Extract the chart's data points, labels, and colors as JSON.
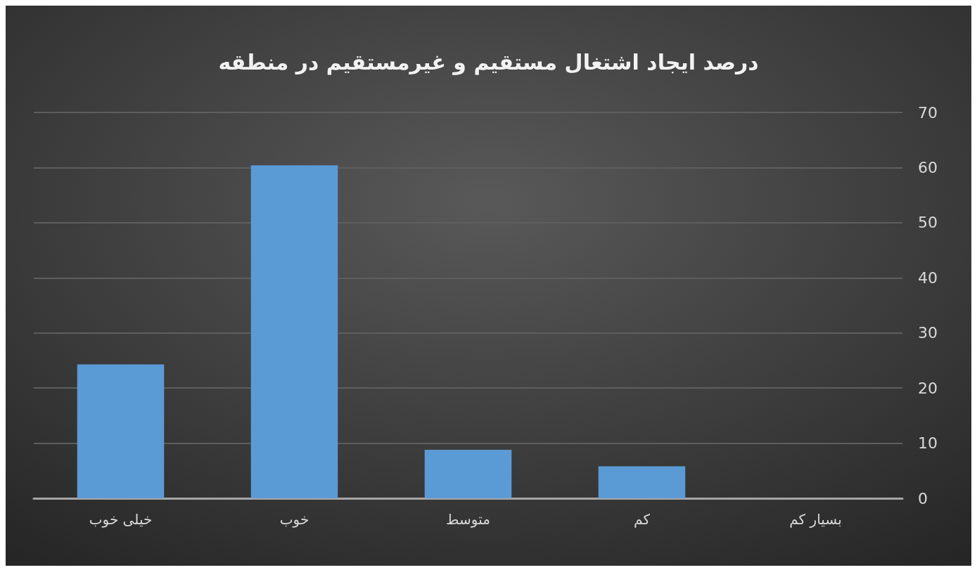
{
  "chart_data": {
    "type": "bar",
    "title": "درصد ایجاد اشتغال مستقیم و غیرمستقیم در منطقه",
    "categories": [
      "خیلی خوب",
      "خوب",
      "متوسط",
      "کم",
      "بسیار کم"
    ],
    "values": [
      24.3,
      60.4,
      8.8,
      5.8,
      0
    ],
    "color": "#5b9bd5",
    "ylim": [
      0,
      70
    ],
    "yticks": [
      0,
      10,
      20,
      30,
      40,
      50,
      60,
      70
    ],
    "grid": "y"
  }
}
